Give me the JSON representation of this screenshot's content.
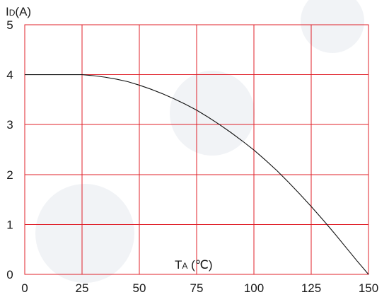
{
  "colors": {
    "grid": "#e0202a",
    "curve": "#111111",
    "text": "#1a1a1a",
    "watermark": "#d8dce6"
  },
  "chart_data": {
    "type": "line",
    "title": "",
    "ylabel_main": "I",
    "ylabel_sub": "D",
    "ylabel_unit": "(A)",
    "xlabel_main": "T",
    "xlabel_sub": "A",
    "xlabel_unit": " (℃)",
    "xlim": [
      0,
      150
    ],
    "ylim": [
      0,
      5
    ],
    "x_ticks": [
      "0",
      "25",
      "50",
      "75",
      "100",
      "125",
      "150"
    ],
    "y_ticks": [
      "0",
      "1",
      "2",
      "3",
      "4",
      "5"
    ],
    "grid": true,
    "series": [
      {
        "x": [
          0,
          25,
          30,
          35,
          40,
          45,
          50,
          55,
          60,
          65,
          70,
          75,
          80,
          85,
          90,
          95,
          100,
          105,
          110,
          115,
          120,
          125,
          130,
          135,
          140,
          145,
          150
        ],
        "y": [
          4.0,
          4.0,
          3.98,
          3.95,
          3.91,
          3.86,
          3.79,
          3.71,
          3.62,
          3.52,
          3.41,
          3.29,
          3.15,
          3.0,
          2.84,
          2.67,
          2.49,
          2.29,
          2.08,
          1.85,
          1.61,
          1.36,
          1.1,
          0.83,
          0.55,
          0.27,
          0.0
        ]
      }
    ]
  }
}
